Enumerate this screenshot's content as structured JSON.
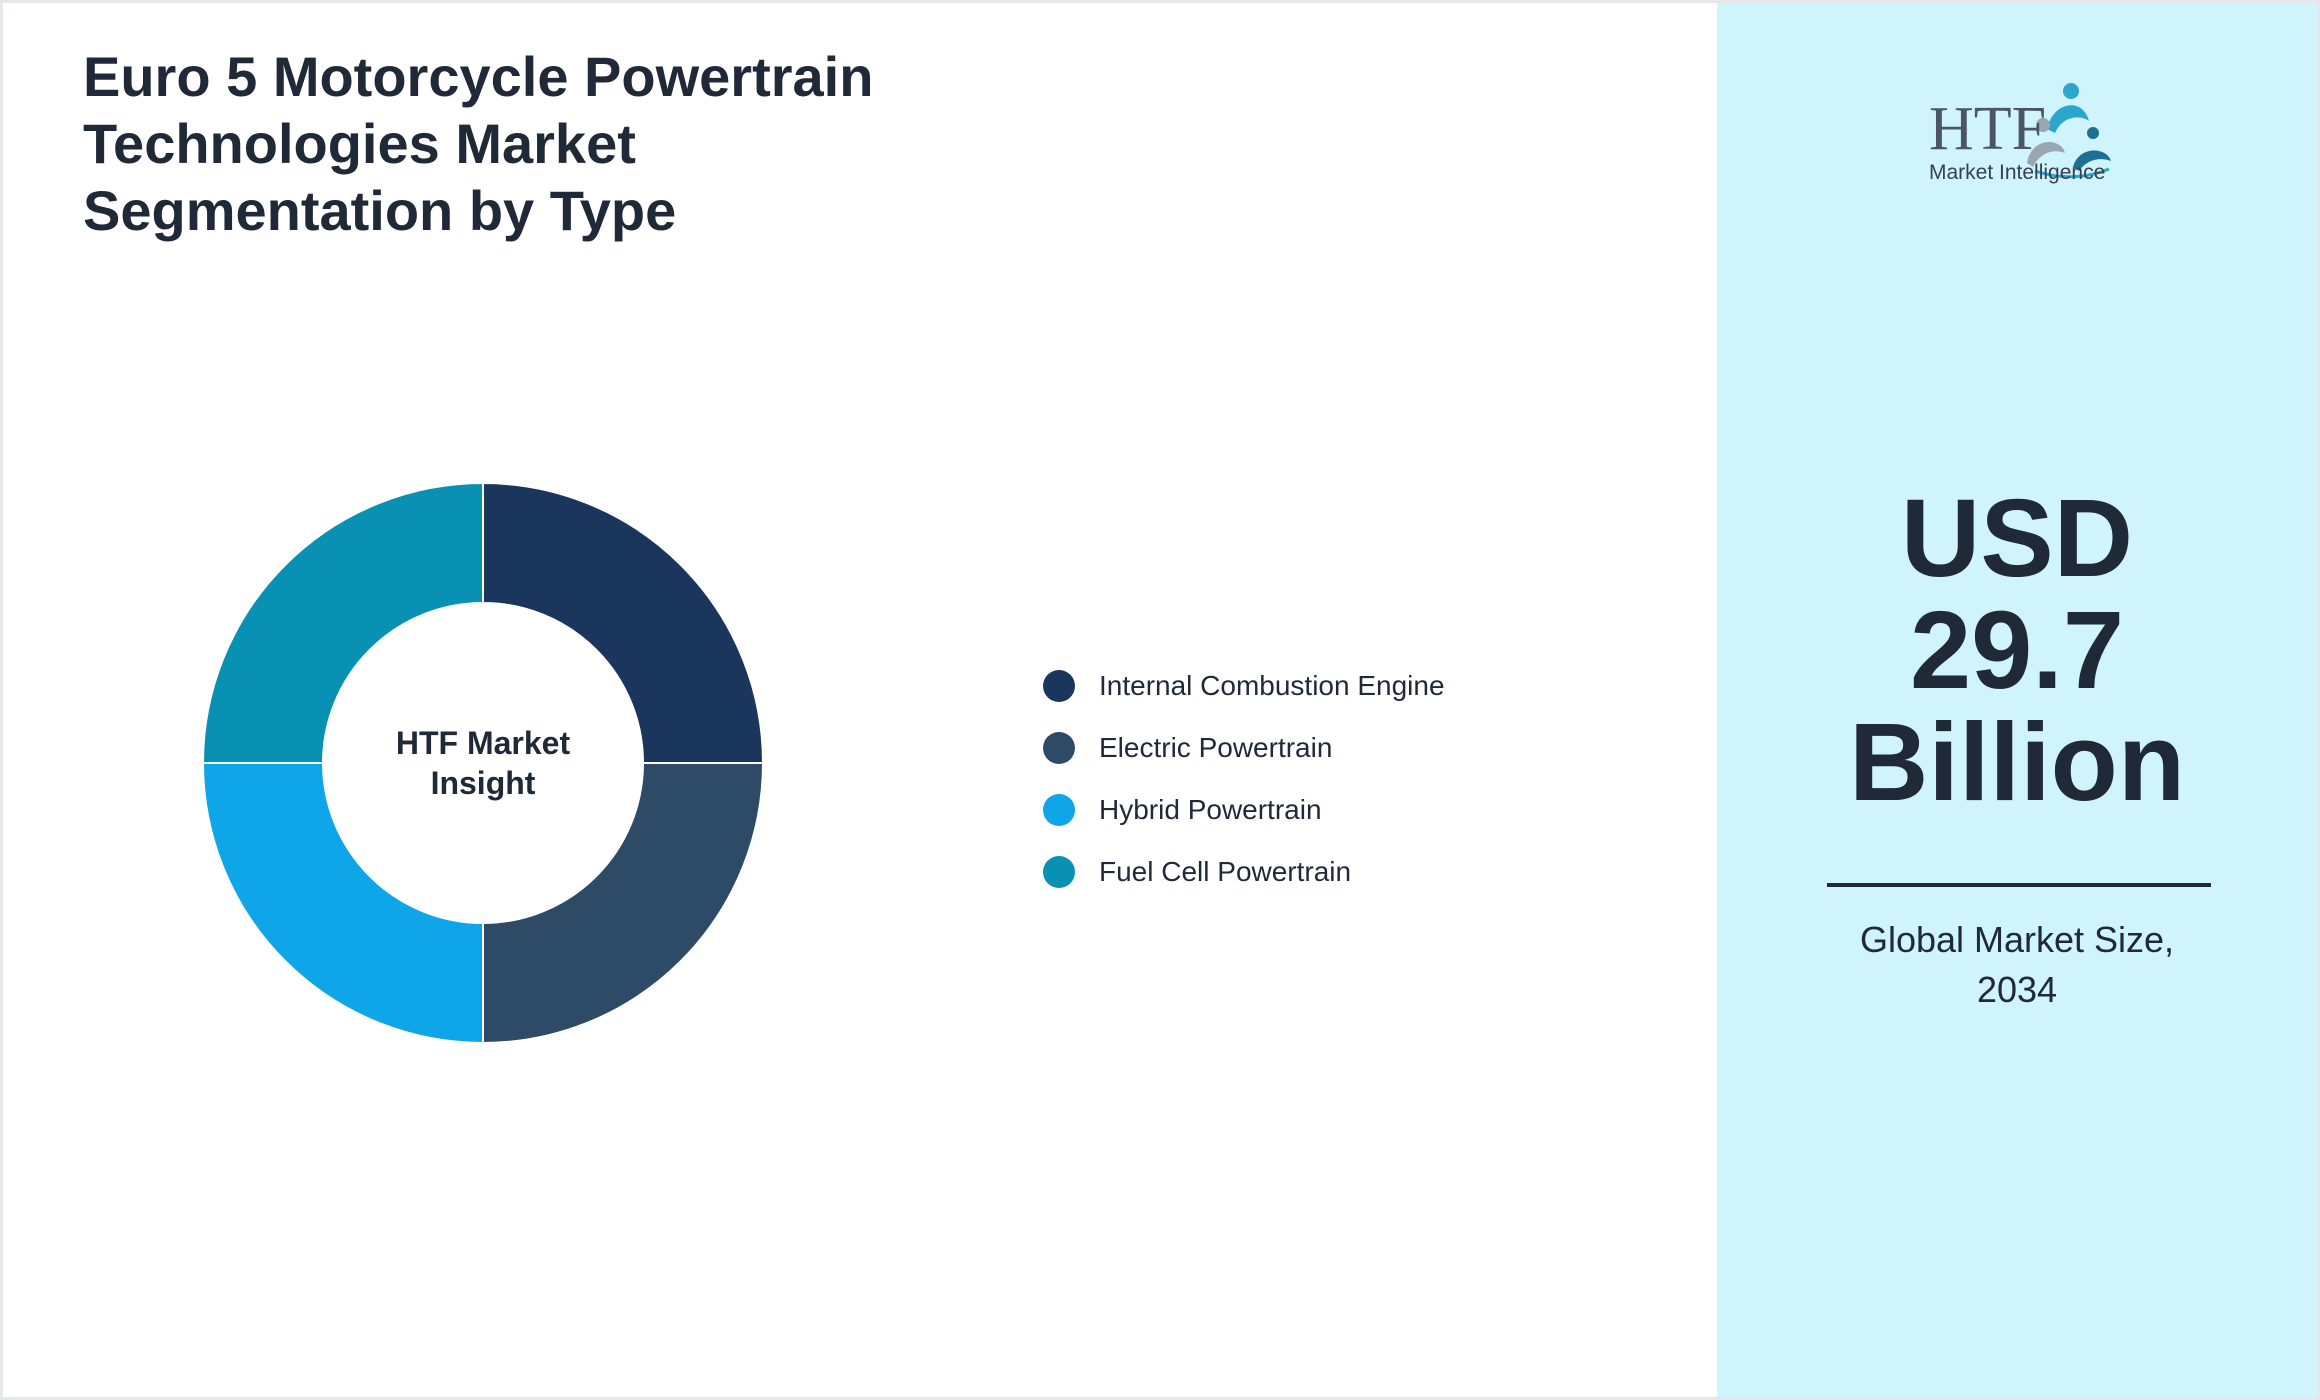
{
  "title": "Euro 5 Motorcycle Powertrain Technologies Market Segmentation by Type",
  "center_label_lines": [
    "HTF Market",
    "Insight"
  ],
  "market_value_lines": [
    "USD",
    "29.7",
    "Billion"
  ],
  "market_caption_lines": [
    "Global Market Size,",
    "2034"
  ],
  "logo": {
    "wordmark": "HTF",
    "subtitle": "Market Intelligence",
    "icon": "htf-figures-logo"
  },
  "colors": {
    "panel_background": "#cff4fc",
    "text": "#1f2937"
  },
  "chart_data": {
    "type": "pie",
    "variant": "donut",
    "categories": [
      "Internal Combustion Engine",
      "Electric Powertrain",
      "Hybrid Powertrain",
      "Fuel Cell Powertrain"
    ],
    "values": [
      25,
      25,
      25,
      25
    ],
    "colors": [
      "#1b365d",
      "#2d4a66",
      "#0ea5e9",
      "#0891b2"
    ],
    "legend_position": "right"
  }
}
